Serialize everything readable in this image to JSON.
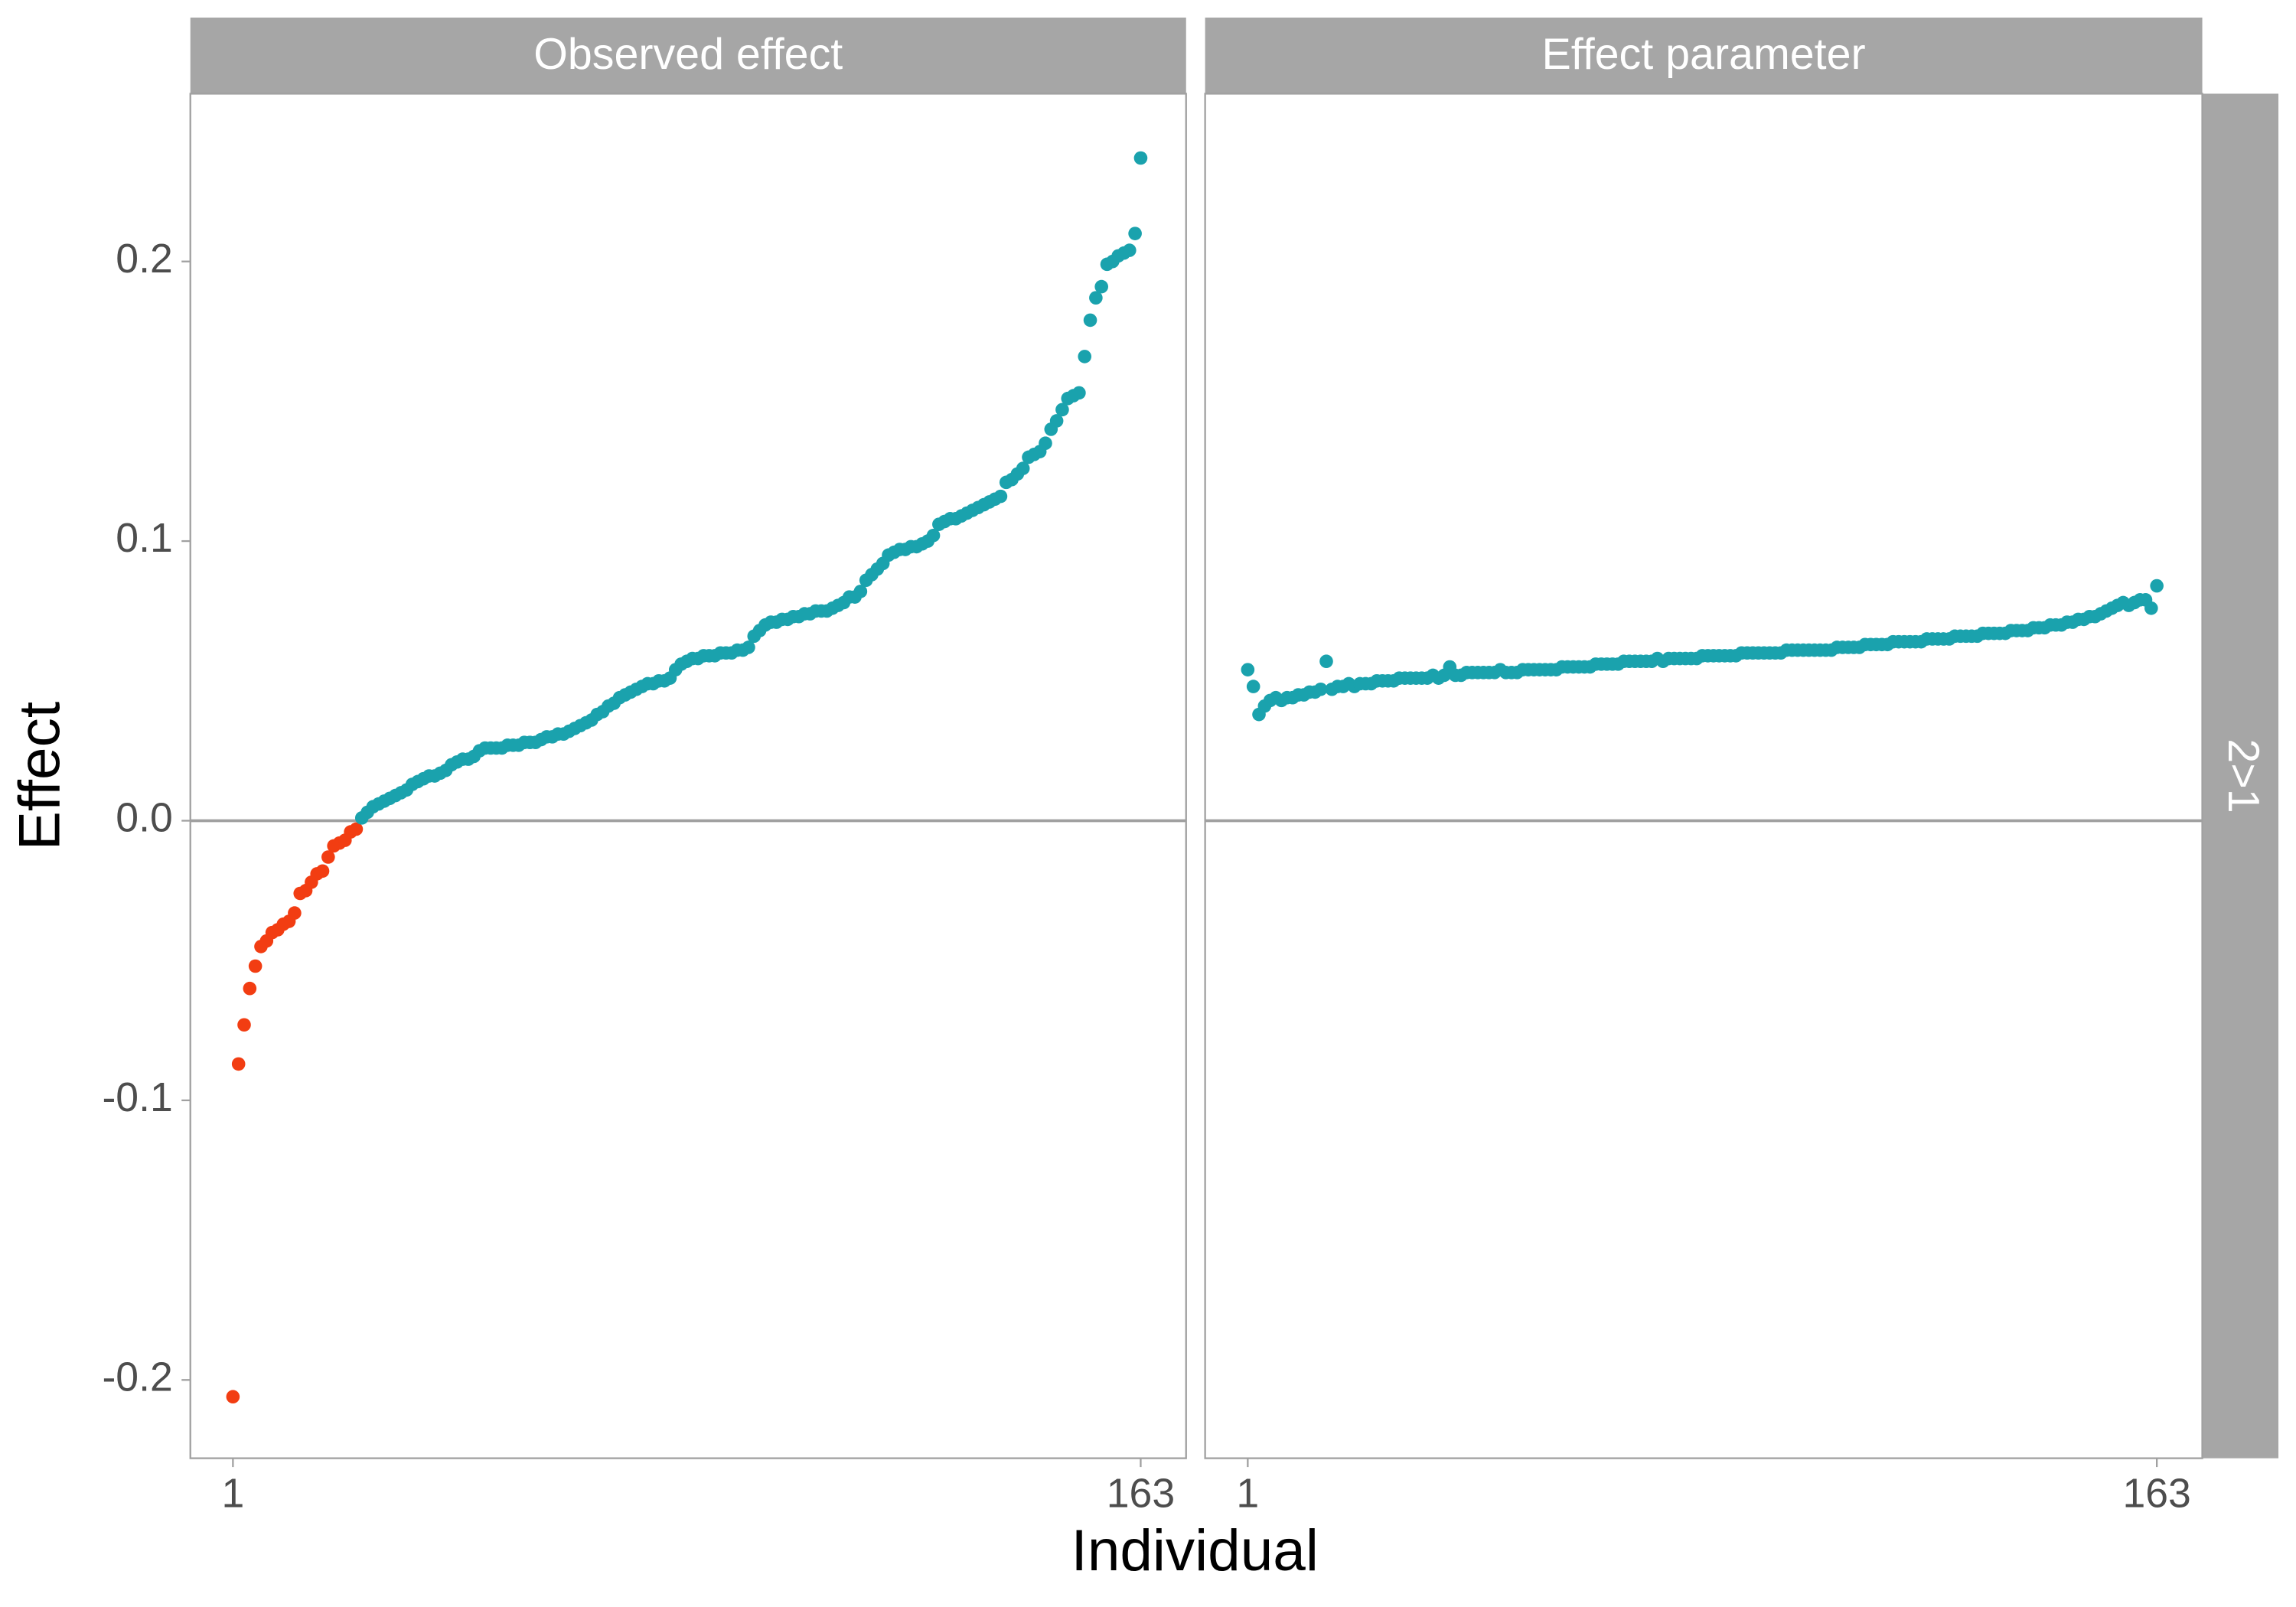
{
  "chart_data": {
    "type": "scatter",
    "x_label": "Individual",
    "y_label": "Effect",
    "strip_right": "2>1",
    "color": "#1aa2ad",
    "negative_color": "#f23d12",
    "xlim": [
      -6.6,
      171.1
    ],
    "xticks": [
      1,
      163
    ],
    "ylim": [
      -0.228,
      0.26
    ],
    "yticks": [
      {
        "value": -0.2,
        "label": "-0.2"
      },
      {
        "value": -0.1,
        "label": "-0.1"
      },
      {
        "value": 0,
        "label": "0.0"
      },
      0.1,
      0.2
    ],
    "reference_line": 0,
    "x": [
      1,
      2,
      3,
      4,
      5,
      6,
      7,
      8,
      9,
      10,
      11,
      12,
      13,
      14,
      15,
      16,
      17,
      18,
      19,
      20,
      21,
      22,
      23,
      24,
      25,
      26,
      27,
      28,
      29,
      30,
      31,
      32,
      33,
      34,
      35,
      36,
      37,
      38,
      39,
      40,
      41,
      42,
      43,
      44,
      45,
      46,
      47,
      48,
      49,
      50,
      51,
      52,
      53,
      54,
      55,
      56,
      57,
      58,
      59,
      60,
      61,
      62,
      63,
      64,
      65,
      66,
      67,
      68,
      69,
      70,
      71,
      72,
      73,
      74,
      75,
      76,
      77,
      78,
      79,
      80,
      81,
      82,
      83,
      84,
      85,
      86,
      87,
      88,
      89,
      90,
      91,
      92,
      93,
      94,
      95,
      96,
      97,
      98,
      99,
      100,
      101,
      102,
      103,
      104,
      105,
      106,
      107,
      108,
      109,
      110,
      111,
      112,
      113,
      114,
      115,
      116,
      117,
      118,
      119,
      120,
      121,
      122,
      123,
      124,
      125,
      126,
      127,
      128,
      129,
      130,
      131,
      132,
      133,
      134,
      135,
      136,
      137,
      138,
      139,
      140,
      141,
      142,
      143,
      144,
      145,
      146,
      147,
      148,
      149,
      150,
      151,
      152,
      153,
      154,
      155,
      156,
      157,
      158,
      159,
      160,
      161,
      162,
      163
    ],
    "panels": [
      {
        "title": "Observed effect",
        "values": [
          -0.206,
          -0.087,
          -0.073,
          -0.06,
          -0.052,
          -0.045,
          -0.043,
          -0.04,
          -0.039,
          -0.037,
          -0.036,
          -0.033,
          -0.026,
          -0.025,
          -0.022,
          -0.019,
          -0.018,
          -0.013,
          -0.009,
          -0.008,
          -0.007,
          -0.004,
          -0.003,
          0.001,
          0.003,
          0.005,
          0.006,
          0.007,
          0.008,
          0.009,
          0.01,
          0.011,
          0.013,
          0.014,
          0.015,
          0.016,
          0.016,
          0.017,
          0.018,
          0.02,
          0.021,
          0.022,
          0.022,
          0.023,
          0.025,
          0.026,
          0.026,
          0.026,
          0.026,
          0.027,
          0.027,
          0.027,
          0.028,
          0.028,
          0.028,
          0.029,
          0.03,
          0.03,
          0.031,
          0.031,
          0.032,
          0.033,
          0.034,
          0.035,
          0.036,
          0.038,
          0.039,
          0.041,
          0.042,
          0.044,
          0.045,
          0.046,
          0.047,
          0.048,
          0.049,
          0.049,
          0.05,
          0.05,
          0.051,
          0.054,
          0.056,
          0.057,
          0.058,
          0.058,
          0.059,
          0.059,
          0.059,
          0.06,
          0.06,
          0.06,
          0.061,
          0.061,
          0.062,
          0.066,
          0.068,
          0.07,
          0.071,
          0.071,
          0.072,
          0.072,
          0.073,
          0.073,
          0.074,
          0.074,
          0.075,
          0.075,
          0.075,
          0.076,
          0.077,
          0.078,
          0.08,
          0.08,
          0.082,
          0.086,
          0.088,
          0.09,
          0.092,
          0.095,
          0.096,
          0.097,
          0.097,
          0.098,
          0.098,
          0.099,
          0.1,
          0.102,
          0.106,
          0.107,
          0.108,
          0.108,
          0.109,
          0.11,
          0.111,
          0.112,
          0.113,
          0.114,
          0.115,
          0.116,
          0.121,
          0.122,
          0.124,
          0.126,
          0.13,
          0.131,
          0.132,
          0.135,
          0.14,
          0.143,
          0.147,
          0.151,
          0.152,
          0.153,
          0.166,
          0.179,
          0.187,
          0.191,
          0.199,
          0.2,
          0.202,
          0.203,
          0.204,
          0.21,
          0.237
        ]
      },
      {
        "title": "Effect parameter",
        "values": [
          0.054,
          0.048,
          0.038,
          0.041,
          0.043,
          0.044,
          0.043,
          0.044,
          0.044,
          0.045,
          0.045,
          0.046,
          0.046,
          0.047,
          0.057,
          0.047,
          0.048,
          0.048,
          0.049,
          0.048,
          0.049,
          0.049,
          0.049,
          0.05,
          0.05,
          0.05,
          0.05,
          0.051,
          0.051,
          0.051,
          0.051,
          0.051,
          0.051,
          0.052,
          0.051,
          0.052,
          0.055,
          0.052,
          0.052,
          0.053,
          0.053,
          0.053,
          0.053,
          0.053,
          0.053,
          0.054,
          0.053,
          0.053,
          0.053,
          0.054,
          0.054,
          0.054,
          0.054,
          0.054,
          0.054,
          0.054,
          0.055,
          0.055,
          0.055,
          0.055,
          0.055,
          0.055,
          0.056,
          0.056,
          0.056,
          0.056,
          0.056,
          0.057,
          0.057,
          0.057,
          0.057,
          0.057,
          0.057,
          0.058,
          0.057,
          0.058,
          0.058,
          0.058,
          0.058,
          0.058,
          0.058,
          0.059,
          0.059,
          0.059,
          0.059,
          0.059,
          0.059,
          0.059,
          0.06,
          0.06,
          0.06,
          0.06,
          0.06,
          0.06,
          0.06,
          0.06,
          0.061,
          0.061,
          0.061,
          0.061,
          0.061,
          0.061,
          0.061,
          0.061,
          0.061,
          0.062,
          0.062,
          0.062,
          0.062,
          0.062,
          0.063,
          0.063,
          0.063,
          0.063,
          0.063,
          0.064,
          0.064,
          0.064,
          0.064,
          0.064,
          0.064,
          0.065,
          0.065,
          0.065,
          0.065,
          0.065,
          0.066,
          0.066,
          0.066,
          0.066,
          0.066,
          0.067,
          0.067,
          0.067,
          0.067,
          0.067,
          0.068,
          0.068,
          0.068,
          0.068,
          0.069,
          0.069,
          0.069,
          0.07,
          0.07,
          0.07,
          0.071,
          0.071,
          0.072,
          0.072,
          0.073,
          0.073,
          0.074,
          0.075,
          0.076,
          0.077,
          0.078,
          0.077,
          0.078,
          0.079,
          0.079,
          0.076,
          0.084
        ]
      }
    ]
  }
}
